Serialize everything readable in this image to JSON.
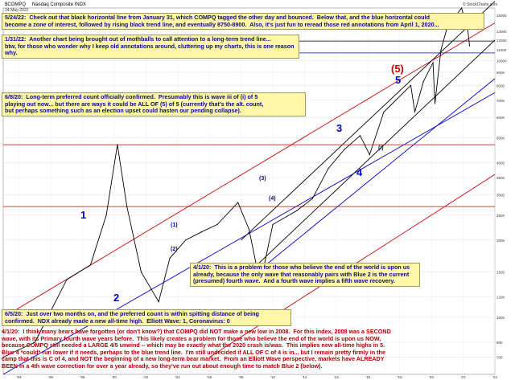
{
  "header": {
    "symbol": "$COMPQ",
    "name": "Nasdaq Composite  INDX",
    "date": "24-May-2022",
    "source": "© StockCharts.com"
  },
  "annotations": {
    "a1": "5/24/22:  Check out that black horizontal line from January 31, which COMPQ tagged the other day and bounced.  Below that, and the blue horizontal could\nbecome a zone of interest, followed by rising black trend line, and eventually 8750-8900.  Also, it's just fun to reread those red annotations from April 1, 2020...",
    "a2": "1/31/22:  Another chart being brought out of mothballs to call attention to a long-term trend line...\nbtw, for those who wonder why I keep old annotations around, cluttering up my charts, this is one reason why.",
    "a3": "6/8/20:  Long-term preferred count officially confirmed.  Presumably this is wave iii of (i) of 5\nplaying out now... but there are ways it could be ALL OF (5) of 5 (currently that's the alt. count,\nbut perhaps something such as an election upset could hasten our pending collapse).",
    "a4": "4/1/20:  This is a problem for those who believe the end of the world is upon us\nalready, because the only wave that reasonably pairs with Blue 2 is the current\n(presumed) fourth wave.  And a fourth wave implies a fifth wave recovery.",
    "a5": "6/5/20:  Just over two months on, and the preferred count is within spitting distance of being\nconfirmed.  NDX already made a new all-time high.  Elliott Wave: 1, Coronavirus: 0",
    "a6": "4/1/20:  I think many bears have forgotten (or don't know?) that COMPQ did NOT make a new low in 2008.  For this index, 2008 was a SECOND\nwave, with its Primary fourth wave years before.  This likely creates a problem for those who believe the end of the world is upon us NOW,\nbecause COMPQ still needed a LARGE 4/5 unwind -- which may be exactly what the 2020 crash is/was.  This implies new all-time highs in 5.\nBlue 4 *could* run lower if it needs, perhaps to the blue trend line.  I'm still undecided if ALL OF C of 4 is in... but I remain pretty firmly in the\ncamp that this is C of 4, and NOT the beginning of a new long-term bear market.  From an Elliott Wave perspective, markets have ALREADY\nBEEN in a 4th wave correction for over a year already, so they've run out about enough time to match Blue 2 (below)."
  },
  "waves": {
    "blue1": "1",
    "blue2": "2",
    "blue3": "3",
    "blue4": "4",
    "blue5": "5",
    "red5": "(5)",
    "sub": [
      "(1)",
      "(2)",
      "(3)",
      "(4)",
      "(i)"
    ]
  },
  "colors": {
    "price": "#000000",
    "red": "#cc0000",
    "blue": "#0000cc",
    "note_text": "#0a0a8a",
    "box_bg": "#fff6a8"
  },
  "chart_data": {
    "type": "line",
    "title": "$COMPQ Nasdaq Composite INDX",
    "scale": "log",
    "ylim": [
      600,
      16000
    ],
    "y_ticks": [
      700,
      800,
      1000,
      1200,
      1500,
      2000,
      2500,
      3000,
      3500,
      4000,
      5000,
      6000,
      7000,
      8000,
      9000,
      10000,
      11000,
      12000,
      13000,
      15000
    ],
    "x_ticks": [
      "'94",
      "'96",
      "'98",
      "'00",
      "'02",
      "'04",
      "'06",
      "'08",
      "'10",
      "'12",
      "'14",
      "'16",
      "'18",
      "'20",
      "'22",
      "'24"
    ],
    "series": [
      {
        "x": [
          1993,
          1995,
          1997,
          1998.5,
          1999.5,
          2000.2,
          2000.8,
          2001.7,
          2002.8,
          2003.5,
          2004.5,
          2005.5,
          2006.5,
          2007.8,
          2008.5,
          2009.2,
          2010,
          2011.5,
          2012.5,
          2013.5,
          2014.5,
          2015.5,
          2016.1,
          2017,
          2018.7,
          2018.95,
          2019.5,
          2020.1,
          2020.22,
          2020.6,
          2021,
          2021.9,
          2022.3,
          2022.4
        ],
        "y": [
          700,
          800,
          1400,
          1600,
          2500,
          4700,
          2700,
          1500,
          1150,
          1700,
          2000,
          2150,
          2300,
          2800,
          2200,
          1350,
          2300,
          2600,
          2900,
          3800,
          4500,
          5100,
          4300,
          6300,
          8000,
          6300,
          8300,
          9800,
          6800,
          11000,
          13500,
          16000,
          13000,
          11400
        ]
      }
    ],
    "lines": [
      {
        "name": "red-channel-upper",
        "color": "red",
        "points": [
          [
            1993,
            1000
          ],
          [
            2024,
            14000
          ]
        ]
      },
      {
        "name": "red-channel-lower",
        "color": "red",
        "points": [
          [
            2006,
            700
          ],
          [
            2024,
            3600
          ]
        ]
      },
      {
        "name": "black-trend-upper",
        "color": "black",
        "points": [
          [
            2008,
            2000
          ],
          [
            2024,
            17000
          ]
        ]
      },
      {
        "name": "black-trend-lower",
        "color": "black",
        "points": [
          [
            2009,
            1600
          ],
          [
            2024,
            12000
          ]
        ]
      },
      {
        "name": "blue-trend",
        "color": "blue",
        "points": [
          [
            1993,
            600
          ],
          [
            2024,
            7500
          ]
        ]
      },
      {
        "name": "blue-trend-2",
        "color": "blue",
        "points": [
          [
            2009,
            1500
          ],
          [
            2024,
            8500
          ]
        ]
      },
      {
        "name": "red-horizontal-1",
        "color": "red",
        "hline": 4700
      },
      {
        "name": "red-horizontal-2",
        "color": "red",
        "hline": 2700
      },
      {
        "name": "black-horizontal",
        "color": "black",
        "hline": 11900
      },
      {
        "name": "blue-horizontal",
        "color": "blue",
        "hline": 10700
      }
    ]
  }
}
